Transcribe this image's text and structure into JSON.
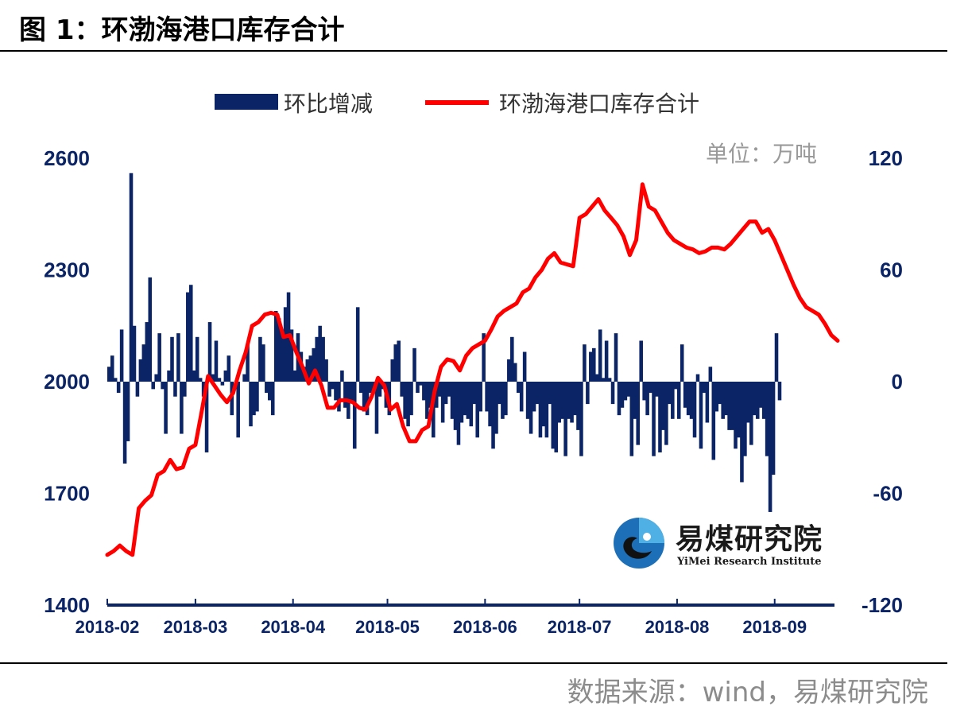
{
  "figure": {
    "title": "图 1：环渤海港口库存合计",
    "source": "数据来源：wind，易煤研究院"
  },
  "logo": {
    "name_cn": "易煤研究院",
    "name_en": "YiMei Research Institute"
  },
  "chart_data": {
    "type": "bar+line",
    "unit_label": "单位：万吨",
    "legend": [
      "环比增减",
      "环渤海港口库存合计"
    ],
    "legend_position": "top",
    "x_ticks": [
      "2018-02",
      "2018-03",
      "2018-04",
      "2018-05",
      "2018-06",
      "2018-07",
      "2018-08",
      "2018-09"
    ],
    "y_left": {
      "ticks": [
        1400,
        1700,
        2000,
        2300,
        2600
      ],
      "range": [
        1400,
        2600
      ]
    },
    "y_right": {
      "ticks": [
        -120,
        -60,
        0,
        60,
        120
      ],
      "range": [
        -120,
        120
      ]
    },
    "grid": false,
    "colors": {
      "bar": "#0b2466",
      "line": "#ff0000",
      "axis_text": "#0b2466"
    },
    "series": [
      {
        "name": "环渤海港口库存合计",
        "kind": "line",
        "axis": "left",
        "x": [
          "2018-02-01",
          "2018-02-03",
          "2018-02-05",
          "2018-02-07",
          "2018-02-09",
          "2018-02-11",
          "2018-02-13",
          "2018-02-15",
          "2018-02-17",
          "2018-02-19",
          "2018-02-21",
          "2018-02-23",
          "2018-02-25",
          "2018-02-27",
          "2018-03-01",
          "2018-03-03",
          "2018-03-05",
          "2018-03-07",
          "2018-03-09",
          "2018-03-11",
          "2018-03-13",
          "2018-03-15",
          "2018-03-17",
          "2018-03-19",
          "2018-03-21",
          "2018-03-23",
          "2018-03-25",
          "2018-03-27",
          "2018-03-29",
          "2018-03-31",
          "2018-04-02",
          "2018-04-04",
          "2018-04-06",
          "2018-04-08",
          "2018-04-10",
          "2018-04-12",
          "2018-04-14",
          "2018-04-16",
          "2018-04-18",
          "2018-04-20",
          "2018-04-22",
          "2018-04-24",
          "2018-04-26",
          "2018-04-28",
          "2018-04-30",
          "2018-05-02",
          "2018-05-04",
          "2018-05-06",
          "2018-05-08",
          "2018-05-10",
          "2018-05-12",
          "2018-05-14",
          "2018-05-16",
          "2018-05-18",
          "2018-05-20",
          "2018-05-22",
          "2018-05-24",
          "2018-05-26",
          "2018-05-28",
          "2018-05-30",
          "2018-06-01",
          "2018-06-03",
          "2018-06-05",
          "2018-06-07",
          "2018-06-09",
          "2018-06-11",
          "2018-06-13",
          "2018-06-15",
          "2018-06-17",
          "2018-06-19",
          "2018-06-21",
          "2018-06-23",
          "2018-06-25",
          "2018-06-27",
          "2018-06-29",
          "2018-07-01",
          "2018-07-03",
          "2018-07-05",
          "2018-07-07",
          "2018-07-09",
          "2018-07-11",
          "2018-07-13",
          "2018-07-15",
          "2018-07-17",
          "2018-07-19",
          "2018-07-21",
          "2018-07-23",
          "2018-07-25",
          "2018-07-27",
          "2018-07-29",
          "2018-07-31",
          "2018-08-02",
          "2018-08-04",
          "2018-08-06",
          "2018-08-08",
          "2018-08-10",
          "2018-08-12",
          "2018-08-14",
          "2018-08-16",
          "2018-08-18",
          "2018-08-20",
          "2018-08-22",
          "2018-08-24",
          "2018-08-26",
          "2018-08-28",
          "2018-08-30",
          "2018-09-01",
          "2018-09-03",
          "2018-09-05",
          "2018-09-07",
          "2018-09-09",
          "2018-09-11",
          "2018-09-13",
          "2018-09-15",
          "2018-09-17",
          "2018-09-19",
          "2018-09-21"
        ],
        "values": [
          1535,
          1545,
          1560,
          1545,
          1535,
          1660,
          1680,
          1695,
          1750,
          1760,
          1790,
          1765,
          1770,
          1820,
          1830,
          1920,
          2015,
          1990,
          1965,
          1945,
          1970,
          2030,
          2080,
          2150,
          2160,
          2180,
          2185,
          2180,
          2120,
          2125,
          2080,
          2040,
          1995,
          2030,
          1990,
          1930,
          1930,
          1950,
          1950,
          1945,
          1930,
          1925,
          1960,
          2010,
          1990,
          1925,
          1940,
          1880,
          1840,
          1840,
          1870,
          1880,
          1975,
          2040,
          2060,
          2055,
          2030,
          2070,
          2090,
          2100,
          2110,
          2140,
          2175,
          2190,
          2200,
          2210,
          2240,
          2250,
          2280,
          2300,
          2330,
          2345,
          2320,
          2315,
          2310,
          2440,
          2450,
          2470,
          2490,
          2460,
          2440,
          2420,
          2390,
          2340,
          2380,
          2530,
          2470,
          2460,
          2430,
          2400,
          2380,
          2370,
          2360,
          2355,
          2345,
          2350,
          2360,
          2360,
          2355,
          2370,
          2390,
          2410,
          2430,
          2430,
          2400,
          2410,
          2380,
          2340,
          2300,
          2260,
          2225,
          2200,
          2190,
          2180,
          2155,
          2125,
          2110
        ],
        "label_note": ""
      },
      {
        "name": "环比增减",
        "kind": "bar",
        "axis": "right",
        "x_start": "2018-02-01",
        "step_days": 1,
        "values": [
          8,
          14,
          2,
          -6,
          28,
          -44,
          -32,
          112,
          30,
          -8,
          12,
          20,
          32,
          56,
          -4,
          4,
          26,
          -4,
          -28,
          6,
          24,
          -8,
          26,
          -28,
          -8,
          48,
          52,
          6,
          24,
          2,
          -8,
          -38,
          32,
          4,
          22,
          2,
          -2,
          6,
          14,
          -18,
          0,
          -30,
          0,
          4,
          20,
          -24,
          -18,
          -16,
          24,
          20,
          -6,
          -10,
          -18,
          38,
          34,
          28,
          40,
          48,
          28,
          6,
          26,
          16,
          8,
          12,
          14,
          18,
          24,
          30,
          24,
          12,
          -8,
          -4,
          -10,
          -16,
          6,
          -14,
          -20,
          -10,
          -36,
          40,
          -6,
          -16,
          -18,
          -6,
          -6,
          -28,
          -8,
          -4,
          -14,
          -18,
          12,
          20,
          22,
          -8,
          -20,
          -24,
          -18,
          18,
          -6,
          -2,
          -10,
          -20,
          -14,
          -30,
          -14,
          -8,
          -22,
          -12,
          -8,
          -20,
          -26,
          -34,
          -22,
          -18,
          -20,
          -24,
          -12,
          -30,
          -16,
          26,
          -16,
          -24,
          -36,
          -28,
          -12,
          -20,
          -18,
          12,
          24,
          10,
          -6,
          -16,
          16,
          -20,
          -28,
          -16,
          -12,
          -30,
          -24,
          -30,
          -12,
          -36,
          -38,
          -22,
          -20,
          -40,
          -20,
          -22,
          -18,
          -26,
          -40,
          20,
          -12,
          16,
          18,
          4,
          28,
          2,
          22,
          2,
          -12,
          26,
          -18,
          -14,
          -10,
          -8,
          -40,
          -20,
          -34,
          22,
          -10,
          -18,
          -6,
          -40,
          -8,
          -38,
          -26,
          -34,
          -12,
          -20,
          -4,
          -20,
          20,
          -14,
          -18,
          -20,
          -30,
          4,
          -36,
          -6,
          -22,
          8,
          -42,
          -16,
          -12,
          -20,
          -18,
          -26,
          -26,
          -36,
          -30,
          -54,
          -40,
          -22,
          -34,
          -18,
          -20,
          -14,
          -20,
          -40,
          -70,
          -50,
          26,
          -10
        ],
        "label_note": ""
      }
    ]
  }
}
